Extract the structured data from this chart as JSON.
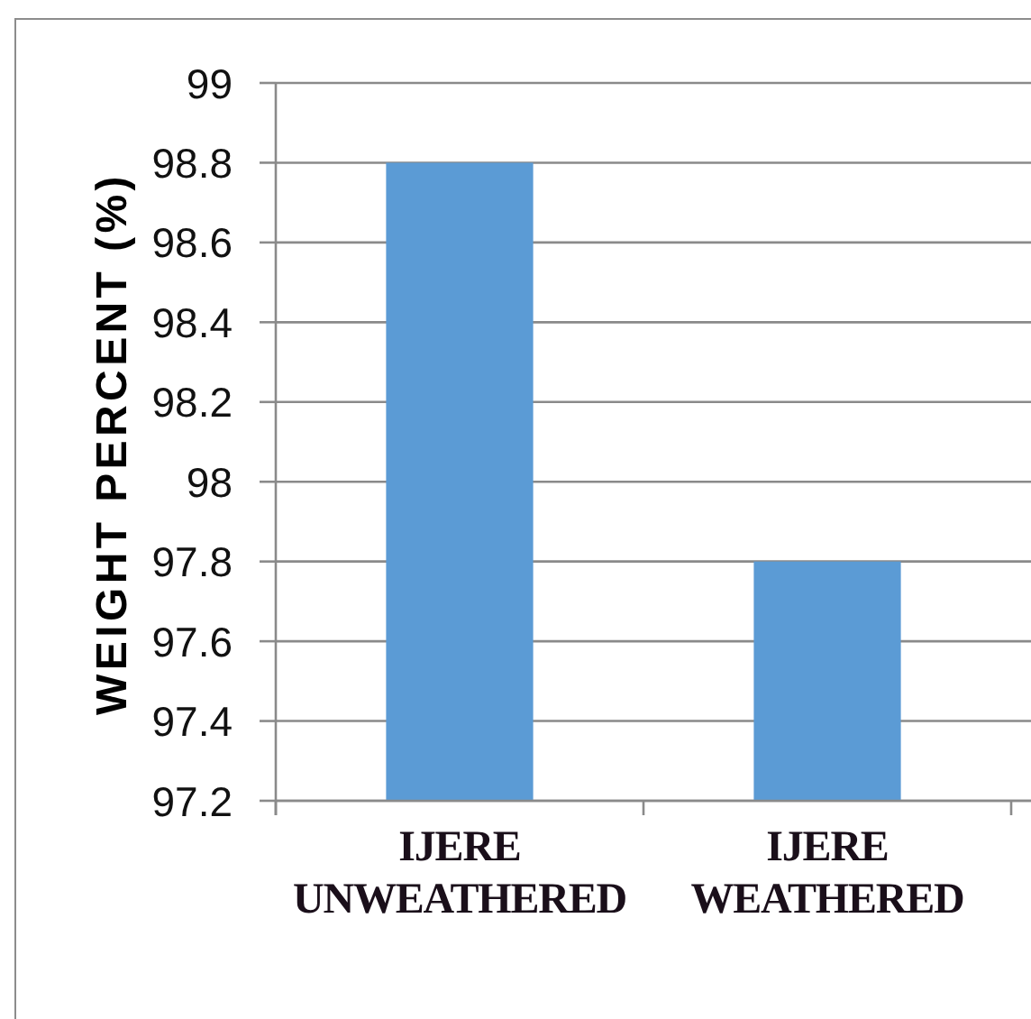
{
  "chart_data": {
    "type": "bar",
    "ylabel": "WEIGHT PERCENT (%)",
    "categories": [
      "IJERE\nUNWEATHERED",
      "IJERE\nWEATHERED"
    ],
    "values": [
      98.8,
      97.8
    ],
    "color": "#5b9bd5",
    "ylim": [
      97.2,
      99
    ],
    "yticks": [
      97.2,
      97.4,
      97.6,
      97.8,
      98,
      98.2,
      98.4,
      98.6,
      98.8,
      99
    ],
    "grid": "y"
  }
}
